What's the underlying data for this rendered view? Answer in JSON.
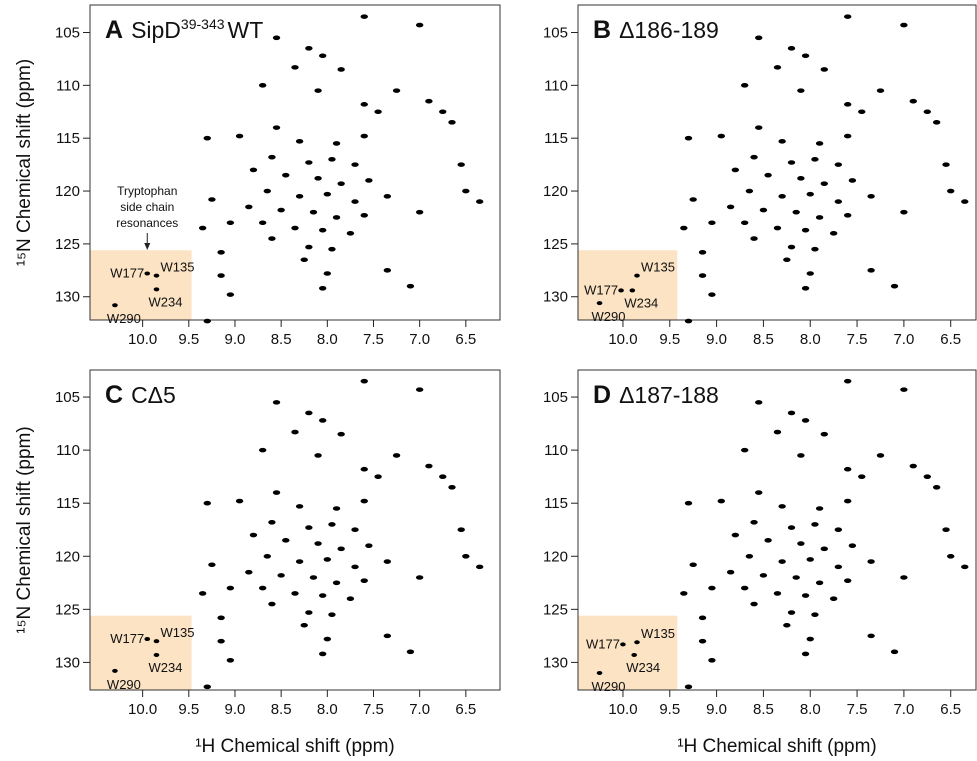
{
  "chart_data": [
    {
      "type": "scatter",
      "panel": "A",
      "title": "SipD",
      "title_sup": "39-343",
      "title_suffix": "WT",
      "ylabel": "¹⁵N Chemical shift (ppm)",
      "annotation": [
        "Tryptophan",
        "side chain",
        "resonances"
      ],
      "xlim": [
        10.57,
        6.13
      ],
      "ylim": [
        102.4,
        132.2
      ],
      "xticks": [
        {
          "value": 10,
          "label": "10.0"
        },
        9.5,
        {
          "value": 9,
          "label": "9.0"
        },
        8.5,
        {
          "value": 8,
          "label": "8.0"
        },
        7.5,
        {
          "value": 7,
          "label": "7.0"
        },
        6.5
      ],
      "yticks": [
        105,
        110,
        115,
        120,
        125,
        130
      ],
      "color": "#000000",
      "highlight": {
        "xlim": [
          10.57,
          9.47
        ],
        "ylim": [
          125.6,
          132.2
        ],
        "color": "#fbe3c4"
      },
      "labeled_peaks": [
        {
          "label": "W177",
          "x": 9.95,
          "y": 127.8
        },
        {
          "label": "W135",
          "x": 9.85,
          "y": 128.0
        },
        {
          "label": "W234",
          "x": 9.85,
          "y": 129.3
        },
        {
          "label": "W290",
          "x": 10.3,
          "y": 130.8
        }
      ],
      "x": [
        7.0,
        7.6,
        8.55,
        8.2,
        8.05,
        7.85,
        8.35,
        7.25,
        8.7,
        8.1,
        7.6,
        7.45,
        6.9,
        6.75,
        6.65,
        8.95,
        8.55,
        8.3,
        7.9,
        7.6,
        9.3,
        8.6,
        8.2,
        7.95,
        7.7,
        8.8,
        8.45,
        8.1,
        7.85,
        7.55,
        8.65,
        8.3,
        8.0,
        7.7,
        7.35,
        8.85,
        8.5,
        8.15,
        7.9,
        7.6,
        8.7,
        8.35,
        8.05,
        7.75,
        8.2,
        7.95,
        8.6,
        9.05,
        9.25,
        9.35,
        9.15,
        9.15,
        9.05,
        9.3,
        8.25,
        8.0,
        8.05,
        7.35,
        7.1,
        6.5,
        6.35,
        6.55,
        7.0
      ],
      "values": [
        104.3,
        103.5,
        105.5,
        106.5,
        107.2,
        108.5,
        108.3,
        110.5,
        110.0,
        110.5,
        111.8,
        112.5,
        111.5,
        112.5,
        113.5,
        114.8,
        114.0,
        115.3,
        115.5,
        114.8,
        115.0,
        116.8,
        117.3,
        117.0,
        117.5,
        118.0,
        118.5,
        118.8,
        119.3,
        119.0,
        120.0,
        120.5,
        120.3,
        121.0,
        120.5,
        121.5,
        121.8,
        122.0,
        122.5,
        122.3,
        123.0,
        123.5,
        123.7,
        124.0,
        125.3,
        125.5,
        124.5,
        123.0,
        120.8,
        123.5,
        125.8,
        128.0,
        129.8,
        132.3,
        126.5,
        127.8,
        129.2,
        127.5,
        129.0,
        120.0,
        121.0,
        117.5,
        122.0
      ]
    },
    {
      "type": "scatter",
      "panel": "B",
      "title": "Δ186-189",
      "xlim": [
        10.48,
        6.23
      ],
      "ylim": [
        102.4,
        132.2
      ],
      "xticks": [
        {
          "value": 10,
          "label": "10.0"
        },
        9.5,
        {
          "value": 9,
          "label": "9.0"
        },
        8.5,
        {
          "value": 8,
          "label": "8.0"
        },
        7.5,
        {
          "value": 7,
          "label": "7.0"
        },
        6.5
      ],
      "yticks": [
        105,
        110,
        115,
        120,
        125,
        130
      ],
      "color": "#000000",
      "highlight": {
        "xlim": [
          10.48,
          9.42
        ],
        "ylim": [
          125.6,
          132.2
        ],
        "color": "#fbe3c4"
      },
      "labeled_peaks": [
        {
          "label": "W177",
          "x": 10.02,
          "y": 129.4
        },
        {
          "label": "W135",
          "x": 9.85,
          "y": 128.0
        },
        {
          "label": "W234",
          "x": 9.9,
          "y": 129.4
        },
        {
          "label": "W290",
          "x": 10.25,
          "y": 130.6
        }
      ],
      "x": [
        7.0,
        7.6,
        8.55,
        8.2,
        8.05,
        7.85,
        8.35,
        7.25,
        8.7,
        8.1,
        7.6,
        7.45,
        6.9,
        6.75,
        6.65,
        8.95,
        8.55,
        8.3,
        7.9,
        7.6,
        9.3,
        8.6,
        8.2,
        7.95,
        7.7,
        8.8,
        8.45,
        8.1,
        7.85,
        7.55,
        8.65,
        8.3,
        8.0,
        7.7,
        7.35,
        8.85,
        8.5,
        8.15,
        7.9,
        7.6,
        8.7,
        8.35,
        8.05,
        7.75,
        8.2,
        7.95,
        8.6,
        9.05,
        9.25,
        9.35,
        9.15,
        9.15,
        9.05,
        9.3,
        8.25,
        8.0,
        8.05,
        7.35,
        7.1,
        6.5,
        6.35,
        6.55,
        7.0
      ],
      "values": [
        104.3,
        103.5,
        105.5,
        106.5,
        107.2,
        108.5,
        108.3,
        110.5,
        110.0,
        110.5,
        111.8,
        112.5,
        111.5,
        112.5,
        113.5,
        114.8,
        114.0,
        115.3,
        115.5,
        114.8,
        115.0,
        116.8,
        117.3,
        117.0,
        117.5,
        118.0,
        118.5,
        118.8,
        119.3,
        119.0,
        120.0,
        120.5,
        120.3,
        121.0,
        120.5,
        121.5,
        121.8,
        122.0,
        122.5,
        122.3,
        123.0,
        123.5,
        123.7,
        124.0,
        125.3,
        125.5,
        124.5,
        123.0,
        120.8,
        123.5,
        125.8,
        128.0,
        129.8,
        132.3,
        126.5,
        127.8,
        129.2,
        127.5,
        129.0,
        120.0,
        121.0,
        117.5,
        122.0
      ]
    },
    {
      "type": "scatter",
      "panel": "C",
      "title": "CΔ5",
      "ylabel": "¹⁵N Chemical shift (ppm)",
      "xlabel": "¹H Chemical shift (ppm)",
      "xlim": [
        10.57,
        6.13
      ],
      "ylim": [
        102.45,
        132.6
      ],
      "xticks": [
        {
          "value": 10,
          "label": "10.0"
        },
        9.5,
        {
          "value": 9,
          "label": "9.0"
        },
        8.5,
        {
          "value": 8,
          "label": "8.0"
        },
        7.5,
        {
          "value": 7,
          "label": "7.0"
        },
        6.5
      ],
      "yticks": [
        105,
        110,
        115,
        120,
        125,
        130
      ],
      "color": "#000000",
      "highlight": {
        "xlim": [
          10.57,
          9.47
        ],
        "ylim": [
          125.6,
          132.6
        ],
        "color": "#fbe3c4"
      },
      "labeled_peaks": [
        {
          "label": "W177",
          "x": 9.95,
          "y": 127.8
        },
        {
          "label": "W135",
          "x": 9.85,
          "y": 128.0
        },
        {
          "label": "W234",
          "x": 9.85,
          "y": 129.3
        },
        {
          "label": "W290",
          "x": 10.3,
          "y": 130.8
        }
      ],
      "x": [
        7.0,
        7.6,
        8.55,
        8.2,
        8.05,
        7.85,
        8.35,
        7.25,
        8.7,
        8.1,
        7.6,
        7.45,
        6.9,
        6.75,
        6.65,
        8.95,
        8.55,
        8.3,
        7.9,
        7.6,
        9.3,
        8.6,
        8.2,
        7.95,
        7.7,
        8.8,
        8.45,
        8.1,
        7.85,
        7.55,
        8.65,
        8.3,
        8.0,
        7.7,
        7.35,
        8.85,
        8.5,
        8.15,
        7.9,
        7.6,
        8.7,
        8.35,
        8.05,
        7.75,
        8.2,
        7.95,
        8.6,
        9.05,
        9.25,
        9.35,
        9.15,
        9.15,
        9.05,
        9.3,
        8.25,
        8.0,
        8.05,
        7.35,
        7.1,
        6.5,
        6.35,
        6.55,
        7.0
      ],
      "values": [
        104.3,
        103.5,
        105.5,
        106.5,
        107.2,
        108.5,
        108.3,
        110.5,
        110.0,
        110.5,
        111.8,
        112.5,
        111.5,
        112.5,
        113.5,
        114.8,
        114.0,
        115.3,
        115.5,
        114.8,
        115.0,
        116.8,
        117.3,
        117.0,
        117.5,
        118.0,
        118.5,
        118.8,
        119.3,
        119.0,
        120.0,
        120.5,
        120.3,
        121.0,
        120.5,
        121.5,
        121.8,
        122.0,
        122.5,
        122.3,
        123.0,
        123.5,
        123.7,
        124.0,
        125.3,
        125.5,
        124.5,
        123.0,
        120.8,
        123.5,
        125.8,
        128.0,
        129.8,
        132.3,
        126.5,
        127.8,
        129.2,
        127.5,
        129.0,
        120.0,
        121.0,
        117.5,
        122.0
      ]
    },
    {
      "type": "scatter",
      "panel": "D",
      "title": "Δ187-188",
      "xlabel": "¹H Chemical shift (ppm)",
      "xlim": [
        10.48,
        6.23
      ],
      "ylim": [
        102.45,
        132.6
      ],
      "xticks": [
        {
          "value": 10,
          "label": "10.0"
        },
        9.5,
        {
          "value": 9,
          "label": "9.0"
        },
        8.5,
        {
          "value": 8,
          "label": "8.0"
        },
        7.5,
        {
          "value": 7,
          "label": "7.0"
        },
        6.5
      ],
      "yticks": [
        105,
        110,
        115,
        120,
        125,
        130
      ],
      "color": "#000000",
      "highlight": {
        "xlim": [
          10.48,
          9.42
        ],
        "ylim": [
          125.6,
          132.6
        ],
        "color": "#fbe3c4"
      },
      "labeled_peaks": [
        {
          "label": "W177",
          "x": 10.0,
          "y": 128.3
        },
        {
          "label": "W135",
          "x": 9.85,
          "y": 128.1
        },
        {
          "label": "W234",
          "x": 9.88,
          "y": 129.3
        },
        {
          "label": "W290",
          "x": 10.25,
          "y": 131.0
        }
      ],
      "x": [
        7.0,
        7.6,
        8.55,
        8.2,
        8.05,
        7.85,
        8.35,
        7.25,
        8.7,
        8.1,
        7.6,
        7.45,
        6.9,
        6.75,
        6.65,
        8.95,
        8.55,
        8.3,
        7.9,
        7.6,
        9.3,
        8.6,
        8.2,
        7.95,
        7.7,
        8.8,
        8.45,
        8.1,
        7.85,
        7.55,
        8.65,
        8.3,
        8.0,
        7.7,
        7.35,
        8.85,
        8.5,
        8.15,
        7.9,
        7.6,
        8.7,
        8.35,
        8.05,
        7.75,
        8.2,
        7.95,
        8.6,
        9.05,
        9.25,
        9.35,
        9.15,
        9.15,
        9.05,
        9.3,
        8.25,
        8.0,
        8.05,
        7.35,
        7.1,
        6.5,
        6.35,
        6.55,
        7.0
      ],
      "values": [
        104.3,
        103.5,
        105.5,
        106.5,
        107.2,
        108.5,
        108.3,
        110.5,
        110.0,
        110.5,
        111.8,
        112.5,
        111.5,
        112.5,
        113.5,
        114.8,
        114.0,
        115.3,
        115.5,
        114.8,
        115.0,
        116.8,
        117.3,
        117.0,
        117.5,
        118.0,
        118.5,
        118.8,
        119.3,
        119.0,
        120.0,
        120.5,
        120.3,
        121.0,
        120.5,
        121.5,
        121.8,
        122.0,
        122.5,
        122.3,
        123.0,
        123.5,
        123.7,
        124.0,
        125.3,
        125.5,
        124.5,
        123.0,
        120.8,
        123.5,
        125.8,
        128.0,
        129.8,
        132.3,
        126.5,
        127.8,
        129.2,
        127.5,
        129.0,
        120.0,
        121.0,
        117.5,
        122.0
      ]
    }
  ]
}
